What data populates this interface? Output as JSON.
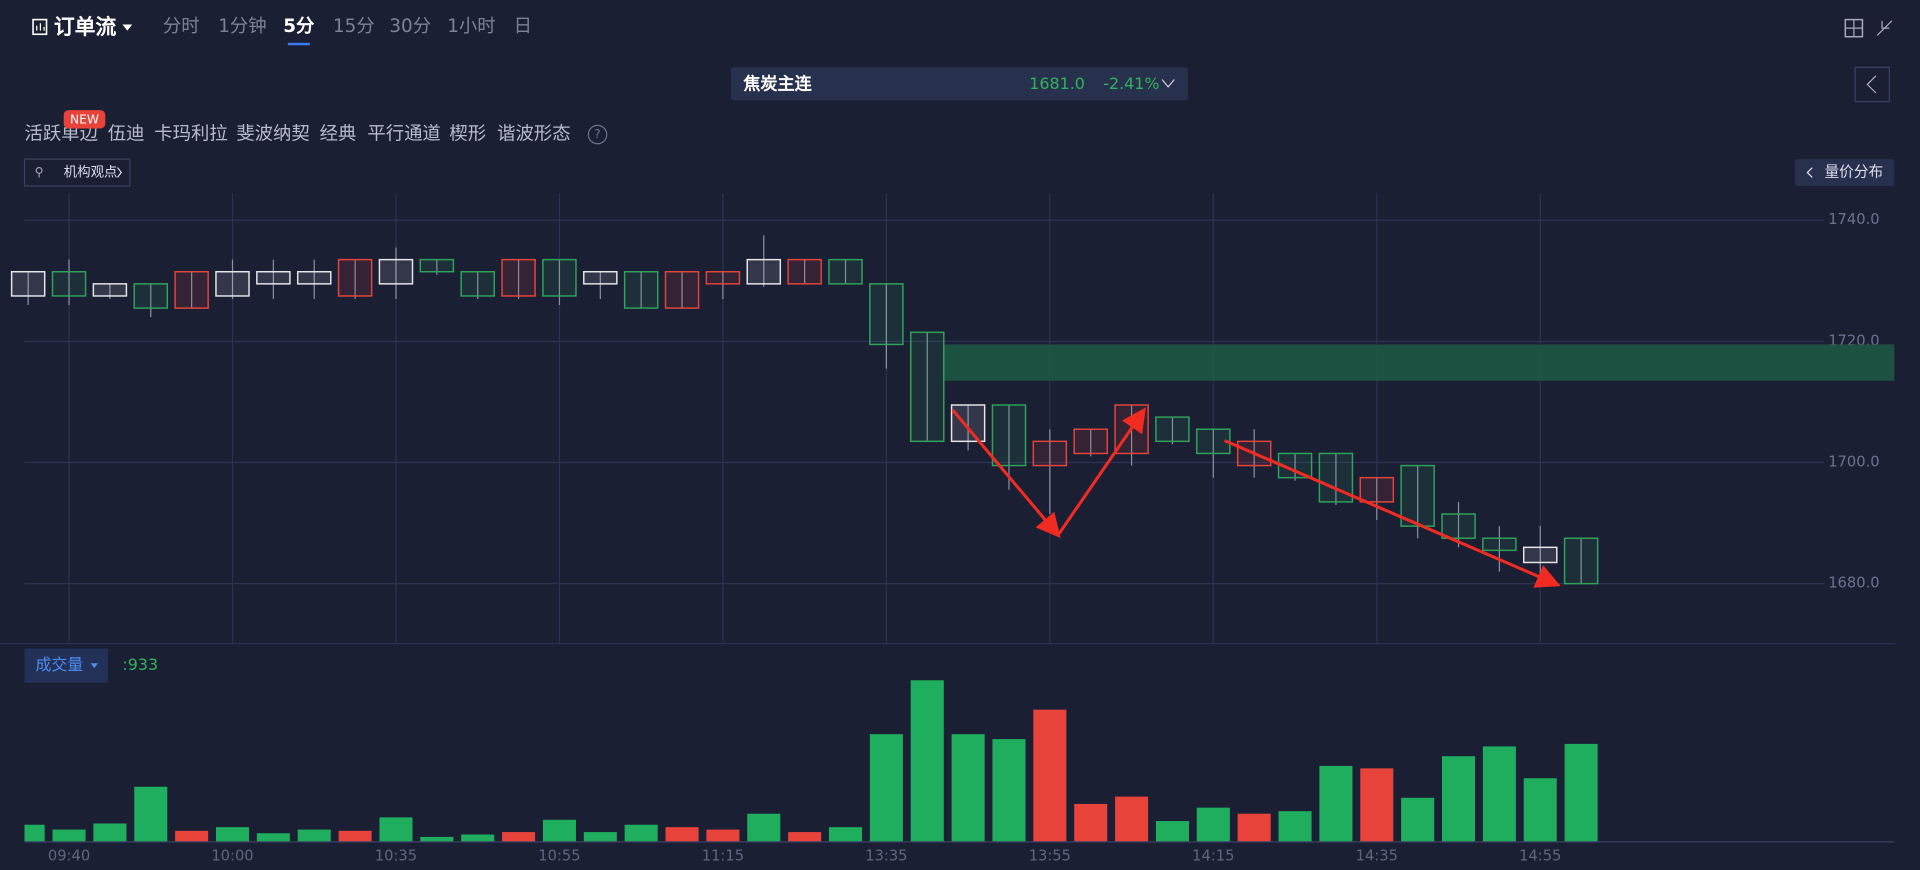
{
  "header": {
    "title": "订单流",
    "tabs": [
      "分时",
      "1分钟",
      "5分",
      "15分",
      "30分",
      "1小时",
      "日"
    ],
    "active_tab": 2
  },
  "instrument": {
    "name": "焦炭主连",
    "price": "1681.0",
    "change": "-2.41%"
  },
  "toolbar": {
    "badge": "NEW",
    "tools": [
      "活跃单边",
      "伍迪",
      "卡玛利拉",
      "斐波纳契",
      "经典",
      "平行通道",
      "楔形",
      "谐波形态"
    ],
    "help": "?",
    "institution_view": "机构观点",
    "volume_profile": "量价分布"
  },
  "chart_data": [
    {
      "type": "candlestick",
      "open": [
        1727.5,
        1727.5,
        1727.5,
        1725.5,
        1731.5,
        1727.5,
        1729.5,
        1729.5,
        1733.5,
        1729.5,
        1731.5,
        1727.5,
        1733.5,
        1727.5,
        1729.5,
        1725.5,
        1731.5,
        1731.5,
        1729.5,
        1733.5,
        1729.5,
        1719.5,
        1703.5,
        1703.5,
        1699.5,
        1703.5,
        1705.5,
        1709.5,
        1703.5,
        1701.5,
        1703.5,
        1697.5,
        1693.5,
        1697.5,
        1689.5,
        1687.5,
        1685.5,
        1683.5,
        1680
      ],
      "high": [
        1731.5,
        1733.5,
        1729.5,
        1729.5,
        1731.5,
        1733.5,
        1733.5,
        1733.5,
        1733.5,
        1735.5,
        1733.5,
        1731.5,
        1733.5,
        1733.5,
        1731.5,
        1731.5,
        1731.5,
        1731.5,
        1737.5,
        1733.5,
        1733.5,
        1729.5,
        1721.5,
        1709.5,
        1709.5,
        1705.5,
        1705.5,
        1709.5,
        1707.5,
        1705.5,
        1705.5,
        1701.5,
        1701.5,
        1697.5,
        1699.5,
        1693.5,
        1689.5,
        1689.5,
        1687.5
      ],
      "low": [
        1726,
        1726,
        1727,
        1724,
        1725.5,
        1727,
        1727,
        1727,
        1727,
        1727,
        1731,
        1727,
        1727,
        1726,
        1727,
        1725.5,
        1725.5,
        1727,
        1729,
        1729.5,
        1729.5,
        1715.5,
        1703.5,
        1702,
        1695.5,
        1691.5,
        1701,
        1699.5,
        1703,
        1697.5,
        1697.5,
        1697,
        1693,
        1690.5,
        1687.5,
        1686,
        1682,
        1680,
        1680
      ],
      "close": [
        1731.5,
        1731.5,
        1729.5,
        1729.5,
        1725.5,
        1731.5,
        1731.5,
        1731.5,
        1727.5,
        1733.5,
        1733.5,
        1731.5,
        1727.5,
        1733.5,
        1731.5,
        1731.5,
        1725.5,
        1729.5,
        1733.5,
        1729.5,
        1733.5,
        1729.5,
        1721.5,
        1709.5,
        1709.5,
        1699.5,
        1701.5,
        1701.5,
        1707.5,
        1705.5,
        1699.5,
        1701.5,
        1701.5,
        1693.5,
        1699.5,
        1691.5,
        1687.5,
        1686,
        1687.5
      ],
      "colors": [
        "#e6e6e6",
        "#2fa35a",
        "#e6e6e6",
        "#2fa35a",
        "#e3453b",
        "#e6e6e6",
        "#e6e6e6",
        "#e6e6e6",
        "#e3453b",
        "#e6e6e6",
        "#2fa35a",
        "#2fa35a",
        "#e3453b",
        "#2fa35a",
        "#e6e6e6",
        "#2fa35a",
        "#e3453b",
        "#e3453b",
        "#e6e6e6",
        "#e3453b",
        "#2fa35a",
        "#2fa35a",
        "#2fa35a",
        "#e6e6e6",
        "#2fa35a",
        "#e3453b",
        "#e3453b",
        "#e3453b",
        "#2fa35a",
        "#2fa35a",
        "#e3453b",
        "#2fa35a",
        "#2fa35a",
        "#e3453b",
        "#2fa35a",
        "#2fa35a",
        "#2fa35a",
        "#e6e6e6",
        "#2fa35a"
      ],
      "zone": [
        1713.5,
        1719.5
      ],
      "zone_color": "#1d5a44",
      "ylim": [
        1670,
        1744
      ],
      "yticks": [
        {
          "value": 1680,
          "label": "1680.0"
        },
        {
          "value": 1700,
          "label": "1700.0"
        },
        {
          "value": 1720,
          "label": "1720.0"
        },
        {
          "value": 1740,
          "label": "1740.0"
        }
      ],
      "grid": true
    },
    {
      "type": "bar",
      "title": "成交量",
      "readout": ":933",
      "categories": [
        null,
        "09:40",
        null,
        null,
        null,
        "10:00",
        null,
        null,
        null,
        "10:35",
        null,
        null,
        null,
        "10:55",
        null,
        null,
        null,
        "11:15",
        null,
        null,
        null,
        "13:35",
        null,
        null,
        null,
        "13:55",
        null,
        null,
        null,
        "14:15",
        null,
        null,
        null,
        "14:35",
        null,
        null,
        null,
        "14:55",
        null
      ],
      "values": [
        163,
        117,
        175,
        525,
        105,
        140,
        82,
        117,
        105,
        233,
        47,
        70,
        93,
        210,
        93,
        163,
        140,
        117,
        268,
        93,
        140,
        1026,
        1539,
        1026,
        979,
        1259,
        361,
        431,
        198,
        326,
        268,
        292,
        723,
        700,
        420,
        816,
        909,
        606,
        933
      ],
      "colors": [
        "#1fae5e",
        "#1fae5e",
        "#1fae5e",
        "#1fae5e",
        "#e8433a",
        "#1fae5e",
        "#1fae5e",
        "#1fae5e",
        "#e8433a",
        "#1fae5e",
        "#1fae5e",
        "#1fae5e",
        "#e8433a",
        "#1fae5e",
        "#1fae5e",
        "#1fae5e",
        "#e8433a",
        "#e8433a",
        "#1fae5e",
        "#e8433a",
        "#1fae5e",
        "#1fae5e",
        "#1fae5e",
        "#1fae5e",
        "#1fae5e",
        "#e8433a",
        "#e8433a",
        "#e8433a",
        "#1fae5e",
        "#1fae5e",
        "#e8433a",
        "#1fae5e",
        "#1fae5e",
        "#e8433a",
        "#1fae5e",
        "#1fae5e",
        "#1fae5e",
        "#1fae5e",
        "#1fae5e"
      ],
      "ylim": [
        0,
        1725
      ]
    }
  ]
}
